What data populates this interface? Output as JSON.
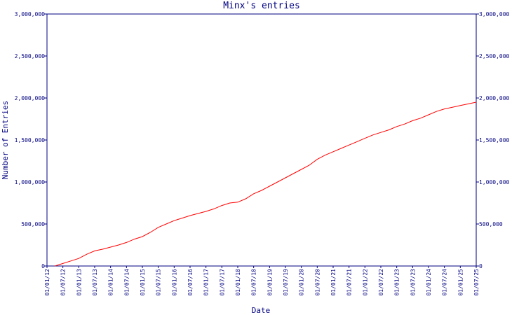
{
  "chart_data": {
    "type": "line",
    "title": "Minx's entries",
    "xlabel": "Date",
    "ylabel": "Number of Entries",
    "ylim": [
      0,
      3000000
    ],
    "yticks": [
      {
        "value": 0,
        "label": "0"
      },
      {
        "value": 500000,
        "label": "500,000"
      },
      {
        "value": 1000000,
        "label": "1,000,000"
      },
      {
        "value": 1500000,
        "label": "1,500,000"
      },
      {
        "value": 2000000,
        "label": "2,000,000"
      },
      {
        "value": 2500000,
        "label": "2,500,000"
      },
      {
        "value": 3000000,
        "label": "3,000,000"
      }
    ],
    "xticks": [
      "01/01/12",
      "01/07/12",
      "01/01/13",
      "01/07/13",
      "01/01/14",
      "01/07/14",
      "01/01/15",
      "01/07/15",
      "01/01/16",
      "01/07/16",
      "01/01/17",
      "01/07/17",
      "01/01/18",
      "01/07/18",
      "01/01/19",
      "01/07/19",
      "01/01/20",
      "01/07/20",
      "01/01/21",
      "01/07/21",
      "01/01/22",
      "01/07/22",
      "01/01/23",
      "01/07/23",
      "01/01/24",
      "01/07/24",
      "01/01/25",
      "01/07/25"
    ],
    "xlim": [
      "01/01/12",
      "01/07/25"
    ],
    "right_axis": true,
    "grid": false,
    "colors": {
      "series": "#ff0000",
      "axis": "#000080",
      "text": "#000080"
    },
    "series": [
      {
        "x": [
          "01/04/12",
          "01/07/12",
          "01/10/12",
          "01/01/13",
          "01/04/13",
          "01/07/13",
          "01/10/13",
          "01/01/14",
          "01/04/14",
          "01/07/14",
          "01/10/14",
          "01/01/15",
          "01/04/15",
          "01/07/15",
          "01/10/15",
          "01/01/16",
          "01/04/16",
          "01/07/16",
          "01/10/16",
          "01/01/17",
          "01/04/17",
          "01/07/17",
          "01/10/17",
          "01/01/18",
          "01/04/18",
          "01/07/18",
          "01/10/18",
          "01/01/19",
          "01/04/19",
          "01/07/19",
          "01/10/19",
          "01/01/20",
          "01/04/20",
          "01/07/20",
          "01/10/20",
          "01/01/21",
          "01/04/21",
          "01/07/21",
          "01/10/21",
          "01/01/22",
          "01/04/22",
          "01/07/22",
          "01/10/22",
          "01/01/23",
          "01/04/23",
          "01/07/23",
          "01/10/23",
          "01/01/24",
          "01/04/24",
          "01/07/24",
          "01/10/24",
          "01/01/25",
          "01/04/25",
          "01/07/25"
        ],
        "y": [
          0,
          30000,
          60000,
          90000,
          140000,
          180000,
          200000,
          225000,
          250000,
          280000,
          320000,
          350000,
          400000,
          460000,
          500000,
          540000,
          570000,
          600000,
          625000,
          650000,
          680000,
          720000,
          750000,
          760000,
          800000,
          860000,
          900000,
          950000,
          1000000,
          1050000,
          1100000,
          1150000,
          1200000,
          1270000,
          1320000,
          1360000,
          1400000,
          1440000,
          1480000,
          1520000,
          1560000,
          1590000,
          1620000,
          1660000,
          1690000,
          1730000,
          1760000,
          1800000,
          1840000,
          1870000,
          1890000,
          1910000,
          1930000,
          1950000
        ]
      }
    ]
  }
}
